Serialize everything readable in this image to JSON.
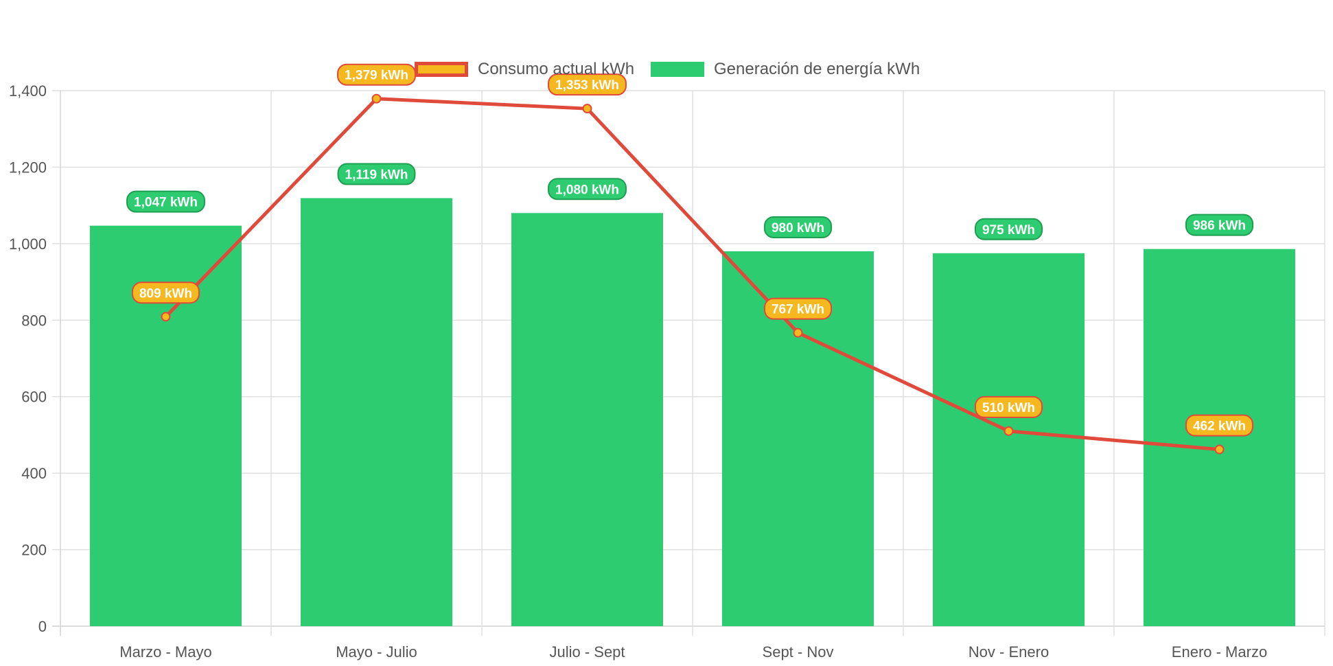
{
  "chart_data": {
    "type": "bar",
    "categories": [
      "Marzo - Mayo",
      "Mayo - Julio",
      "Julio - Sept",
      "Sept - Nov",
      "Nov - Enero",
      "Enero - Marzo"
    ],
    "series": [
      {
        "name": "Consumo actual kWh",
        "type": "line",
        "values": [
          809,
          1379,
          1353,
          767,
          510,
          462
        ],
        "data_labels": [
          "809 kWh",
          "1,379 kWh",
          "1,353 kWh",
          "767 kWh",
          "510 kWh",
          "462 kWh"
        ],
        "line_color": "#e04a3a",
        "fill_color": "#f5b81e"
      },
      {
        "name": "Generación de energía kWh",
        "type": "bar",
        "values": [
          1047,
          1119,
          1080,
          980,
          975,
          986
        ],
        "data_labels": [
          "1,047 kWh",
          "1,119 kWh",
          "1,080 kWh",
          "980 kWh",
          "975 kWh",
          "986 kWh"
        ],
        "bar_color": "#2ecc71",
        "label_border_color": "#1e9e50"
      }
    ],
    "y_ticks": [
      "0",
      "200",
      "400",
      "600",
      "800",
      "1,000",
      "1,200",
      "1,400"
    ],
    "ylim": [
      0,
      1400
    ],
    "grid": true,
    "legend_position": "top"
  }
}
